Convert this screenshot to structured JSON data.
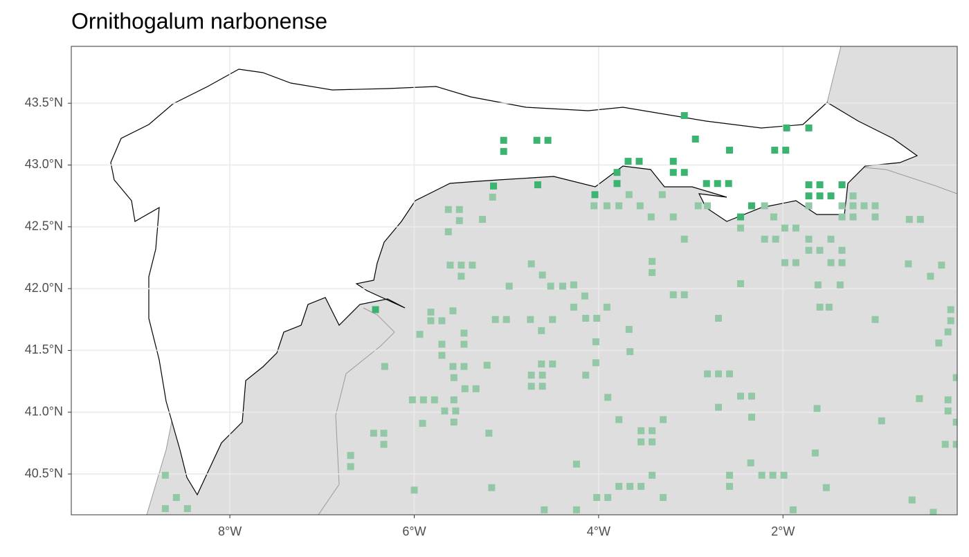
{
  "chart_data": {
    "type": "scatter",
    "title": "Ornithogalum narbonense",
    "xlim": [
      -9.72,
      -0.11
    ],
    "ylim": [
      40.17,
      43.96
    ],
    "xticks": [
      {
        "value": -8,
        "label": "8°W"
      },
      {
        "value": -6,
        "label": "6°W"
      },
      {
        "value": -4,
        "label": "4°W"
      },
      {
        "value": -2,
        "label": "2°W"
      }
    ],
    "yticks": [
      {
        "value": 40.5,
        "label": "40.5°N"
      },
      {
        "value": 41.0,
        "label": "41.0°N"
      },
      {
        "value": 41.5,
        "label": "41.5°N"
      },
      {
        "value": 42.0,
        "label": "42.0°N"
      },
      {
        "value": 42.5,
        "label": "42.5°N"
      },
      {
        "value": 43.0,
        "label": "43.0°N"
      },
      {
        "value": 43.5,
        "label": "43.5°N"
      }
    ],
    "grid": true,
    "series": [
      {
        "color": "#93c8a6",
        "x": [
          -5.63,
          -5.51,
          -5.51,
          -5.63,
          -5.26,
          -5.15,
          -5.61,
          -5.49,
          -5.37,
          -5.49,
          -4.97,
          -4.73,
          -4.61,
          -4.52,
          -4.39,
          -4.27,
          -4.15,
          -4.27,
          -5.12,
          -5.0,
          -4.74,
          -4.62,
          -4.5,
          -4.14,
          -4.02,
          -3.91,
          -4.03,
          -4.03,
          -4.14,
          -5.82,
          -5.82,
          -5.7,
          -5.58,
          -5.94,
          -5.7,
          -5.7,
          -5.46,
          -5.46,
          -5.58,
          -5.46,
          -5.21,
          -5.57,
          -5.45,
          -5.33,
          -4.73,
          -4.61,
          -4.5,
          -4.62,
          -4.73,
          -4.61,
          -3.67,
          -3.66,
          -3.9,
          -3.78,
          -6.02,
          -5.9,
          -5.78,
          -5.57,
          -5.67,
          -5.55,
          -5.91,
          -5.57,
          -5.19,
          -6.44,
          -6.33,
          -6.33,
          -6.69,
          -6.69,
          -6.0,
          -5.16,
          -4.24,
          -4.59,
          -4.24,
          -4.02,
          -3.9,
          -3.78,
          -3.66,
          -3.54,
          -3.42,
          -3.3,
          -3.54,
          -3.42,
          -3.54,
          -3.42,
          -3.3,
          -8.7,
          -8.58,
          -8.46,
          -8.7,
          -6.32,
          -3.67,
          -3.78,
          -3.91,
          -4.05,
          -3.55,
          -3.43,
          -3.31,
          -3.19,
          -3.07,
          -3.19,
          -3.07,
          -3.42,
          -3.42,
          -2.92,
          -2.82,
          -2.46,
          -2.46,
          -2.2,
          -2.08,
          -2.2,
          -2.1,
          -1.98,
          -1.86,
          -1.98,
          -1.86,
          -1.72,
          -1.72,
          -1.72,
          -1.6,
          -1.48,
          -1.48,
          -1.36,
          -1.36,
          -1.24,
          -1.24,
          -1.24,
          -1.36,
          -1.36,
          -1.12,
          -1.0,
          -1.0,
          -1.62,
          -1.38,
          -1.6,
          -1.5,
          -2.7,
          -2.82,
          -2.7,
          -2.58,
          -2.7,
          -2.46,
          -2.34,
          -2.34,
          -2.35,
          -2.23,
          -2.11,
          -1.99,
          -2.58,
          -2.58,
          -1.63,
          -1.65,
          -1.53,
          -0.93,
          -1.0,
          -0.64,
          -0.52,
          -0.4,
          -0.28,
          -0.63,
          -0.51,
          -0.31,
          -0.18,
          -0.18,
          -0.21,
          -0.21,
          -0.21,
          -0.24,
          -0.12,
          -0.12,
          -0.12,
          -0.37,
          -0.6,
          -1.89
        ],
        "values": [
          42.64,
          42.64,
          42.55,
          42.46,
          42.56,
          42.74,
          42.19,
          42.19,
          42.19,
          42.1,
          42.02,
          42.2,
          42.11,
          42.02,
          42.02,
          42.03,
          41.94,
          41.85,
          41.75,
          41.75,
          41.75,
          41.66,
          41.75,
          41.76,
          41.76,
          41.85,
          41.57,
          41.4,
          41.3,
          41.81,
          41.74,
          41.74,
          41.82,
          41.63,
          41.55,
          41.46,
          41.64,
          41.55,
          41.37,
          41.37,
          41.38,
          41.28,
          41.19,
          41.19,
          41.3,
          41.3,
          41.39,
          41.39,
          41.21,
          41.21,
          41.67,
          41.49,
          41.12,
          40.94,
          41.1,
          41.1,
          41.1,
          41.1,
          41.01,
          41.01,
          40.91,
          40.92,
          40.83,
          40.83,
          40.83,
          40.74,
          40.65,
          40.56,
          40.37,
          40.39,
          40.58,
          40.21,
          40.21,
          40.31,
          40.31,
          40.4,
          40.4,
          40.4,
          40.49,
          40.31,
          40.85,
          40.85,
          40.76,
          40.76,
          40.94,
          40.49,
          40.31,
          40.22,
          40.22,
          41.37,
          42.76,
          42.67,
          42.67,
          42.67,
          42.67,
          42.58,
          42.76,
          42.58,
          42.4,
          41.95,
          41.95,
          42.22,
          42.13,
          42.67,
          42.67,
          42.49,
          42.04,
          42.4,
          42.4,
          42.67,
          42.58,
          42.49,
          42.49,
          42.21,
          42.21,
          42.67,
          42.4,
          42.31,
          42.31,
          42.4,
          42.21,
          42.31,
          42.21,
          42.75,
          42.67,
          42.58,
          42.67,
          42.58,
          42.67,
          42.67,
          42.58,
          42.03,
          42.03,
          41.85,
          41.85,
          41.76,
          41.31,
          41.31,
          41.31,
          41.04,
          41.13,
          41.13,
          40.96,
          40.59,
          40.49,
          40.49,
          40.49,
          40.49,
          40.4,
          41.03,
          40.67,
          40.39,
          40.93,
          41.75,
          42.2,
          41.11,
          42.1,
          42.19,
          42.56,
          42.56,
          41.56,
          41.83,
          41.74,
          41.65,
          41.1,
          41.01,
          40.74,
          40.74,
          40.92,
          41.28,
          40.19,
          40.29,
          40.21
        ]
      },
      {
        "color": "#3cb371",
        "x": [
          -5.03,
          -5.03,
          -4.67,
          -4.55,
          -5.14,
          -4.66,
          -3.8,
          -3.8,
          -3.68,
          -3.56,
          -3.19,
          -3.19,
          -3.07,
          -3.07,
          -2.95,
          -2.58,
          -2.09,
          -1.97,
          -1.96,
          -1.72,
          -1.72,
          -1.6,
          -2.71,
          -2.59,
          -2.83,
          -1.6,
          -1.48,
          -1.36,
          -1.72,
          -4.04,
          -2.34,
          -2.46,
          -6.42
        ],
        "values": [
          43.2,
          43.11,
          43.2,
          43.2,
          42.83,
          42.84,
          42.94,
          42.85,
          43.03,
          43.03,
          43.03,
          42.94,
          42.94,
          43.4,
          43.21,
          43.12,
          43.12,
          43.12,
          43.3,
          43.3,
          42.84,
          42.84,
          42.85,
          42.85,
          42.85,
          42.75,
          42.75,
          42.84,
          42.75,
          42.76,
          42.67,
          42.58,
          41.83
        ]
      }
    ]
  }
}
